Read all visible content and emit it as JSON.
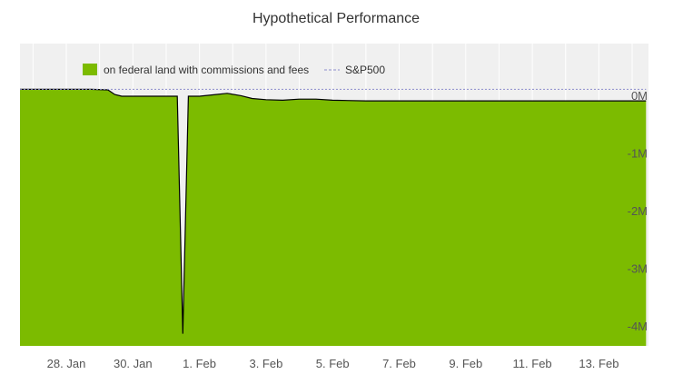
{
  "chart_data": {
    "type": "area",
    "title": "Hypothetical Performance",
    "xlabel": "",
    "ylabel": "",
    "x_ticks": [
      "28. Jan",
      "30. Jan",
      "1. Feb",
      "3. Feb",
      "5. Feb",
      "7. Feb",
      "9. Feb",
      "11. Feb",
      "13. Feb"
    ],
    "y_ticks": [
      {
        "value": 0,
        "label": "0M"
      },
      {
        "value": -1,
        "label": "-1M"
      },
      {
        "value": -2,
        "label": "-2M"
      },
      {
        "value": -3,
        "label": "-3M"
      },
      {
        "value": -4,
        "label": "-4M"
      }
    ],
    "ylim": [
      -4.3,
      0.25
    ],
    "x_range": [
      "2019-01-26T06:00",
      "2019-02-14T10:00"
    ],
    "grid": true,
    "legend_position": "top-left",
    "series": [
      {
        "name": "on federal land with commissions and fees",
        "style": "area",
        "color": "#7cbb00",
        "line_color": "#000000",
        "points": [
          [
            "2019-01-26T06:00",
            0.12
          ],
          [
            "2019-01-27T12:00",
            0.12
          ],
          [
            "2019-01-28T18:00",
            0.12
          ],
          [
            "2019-01-29T06:00",
            0.11
          ],
          [
            "2019-01-29T11:00",
            0.03
          ],
          [
            "2019-01-29T16:00",
            0.0
          ],
          [
            "2019-01-30T12:00",
            0.0
          ],
          [
            "2019-01-31T08:00",
            0.0
          ],
          [
            "2019-01-31T12:00",
            -4.12
          ],
          [
            "2019-01-31T16:00",
            0.0
          ],
          [
            "2019-02-01T00:00",
            0.0
          ],
          [
            "2019-02-01T12:00",
            0.03
          ],
          [
            "2019-02-01T20:00",
            0.05
          ],
          [
            "2019-02-02T06:00",
            0.01
          ],
          [
            "2019-02-02T14:00",
            -0.04
          ],
          [
            "2019-02-03T00:00",
            -0.06
          ],
          [
            "2019-02-03T12:00",
            -0.07
          ],
          [
            "2019-02-04T00:00",
            -0.05
          ],
          [
            "2019-02-04T12:00",
            -0.05
          ],
          [
            "2019-02-05T00:00",
            -0.07
          ],
          [
            "2019-02-06T00:00",
            -0.08
          ],
          [
            "2019-02-08T00:00",
            -0.08
          ],
          [
            "2019-02-10T00:00",
            -0.08
          ],
          [
            "2019-02-12T00:00",
            -0.08
          ],
          [
            "2019-02-14T10:00",
            -0.08
          ]
        ]
      },
      {
        "name": "S&P500",
        "style": "dashed-line",
        "color": "#8c8ccc",
        "points": [
          [
            "2019-01-26T06:00",
            0.12
          ],
          [
            "2019-02-14T10:00",
            0.12
          ]
        ]
      }
    ],
    "colors": {
      "plot_background": "#f0f0f0",
      "grid": "#ffffff",
      "area_fill": "#7cbb00",
      "area_line": "#000000",
      "benchmark": "#8c8ccc"
    }
  }
}
